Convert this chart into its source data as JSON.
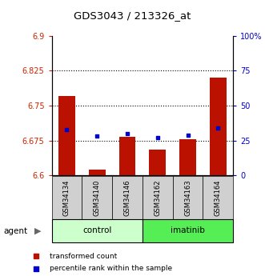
{
  "title": "GDS3043 / 213326_at",
  "samples": [
    "GSM34134",
    "GSM34140",
    "GSM34146",
    "GSM34162",
    "GSM34163",
    "GSM34164"
  ],
  "groups": [
    "control",
    "control",
    "control",
    "imatinib",
    "imatinib",
    "imatinib"
  ],
  "bar_values": [
    6.77,
    6.612,
    6.682,
    6.655,
    6.678,
    6.81
  ],
  "percentile_values": [
    33,
    28,
    30,
    27,
    29,
    34
  ],
  "ymin": 6.6,
  "ymax": 6.9,
  "yticks": [
    6.6,
    6.675,
    6.75,
    6.825,
    6.9
  ],
  "ytick_labels": [
    "6.6",
    "6.675",
    "6.75",
    "6.825",
    "6.9"
  ],
  "y2min": 0,
  "y2max": 100,
  "y2ticks": [
    0,
    25,
    50,
    75,
    100
  ],
  "y2tick_labels": [
    "0",
    "25",
    "50",
    "75",
    "100%"
  ],
  "grid_values": [
    6.675,
    6.75,
    6.825
  ],
  "bar_color": "#bb1100",
  "dot_color": "#0000cc",
  "bar_width": 0.55,
  "control_color": "#ccffcc",
  "imatinib_color": "#55ee55",
  "legend_items": [
    "transformed count",
    "percentile rank within the sample"
  ]
}
